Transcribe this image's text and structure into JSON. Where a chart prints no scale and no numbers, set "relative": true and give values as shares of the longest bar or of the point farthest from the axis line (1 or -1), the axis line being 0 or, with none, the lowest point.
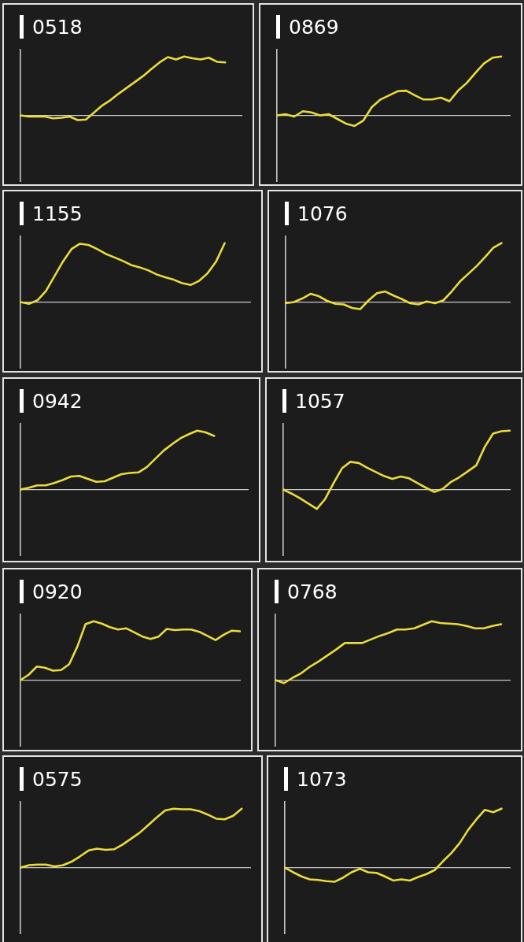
{
  "chart_data": [
    {
      "type": "line",
      "title": "0518",
      "relative": true,
      "color": "#eadb3d",
      "categories": [
        null,
        null,
        null,
        null,
        null,
        null,
        null,
        null,
        null,
        null,
        null,
        null,
        null,
        null,
        null,
        null,
        null,
        null,
        null,
        null,
        null,
        null,
        null,
        null,
        null,
        null,
        null,
        null
      ],
      "values": [
        0,
        -0.02,
        -0.02,
        -0.02,
        -0.05,
        -0.04,
        -0.02,
        -0.08,
        -0.07,
        0.05,
        0.17,
        0.26,
        0.37,
        0.47,
        0.57,
        0.67,
        0.79,
        0.9,
        0.99,
        0.95,
        1,
        0.97,
        0.95,
        0.98,
        0.91,
        0.9,
        null,
        null
      ]
    },
    {
      "type": "line",
      "title": "0869",
      "relative": true,
      "color": "#eadb3d",
      "categories": [
        null,
        null,
        null,
        null,
        null,
        null,
        null,
        null,
        null,
        null,
        null,
        null,
        null,
        null,
        null,
        null,
        null,
        null,
        null,
        null,
        null,
        null,
        null,
        null,
        null,
        null,
        null,
        null
      ],
      "values": [
        0,
        0.02,
        -0.02,
        0.07,
        0.05,
        0,
        0.02,
        -0.06,
        -0.14,
        -0.18,
        -0.09,
        0.14,
        0.27,
        0.34,
        0.41,
        0.42,
        0.34,
        0.27,
        0.27,
        0.3,
        0.24,
        0.42,
        0.55,
        0.72,
        0.88,
        0.98,
        1,
        null
      ]
    },
    {
      "type": "line",
      "title": "1155",
      "relative": true,
      "color": "#eadb3d",
      "categories": [
        null,
        null,
        null,
        null,
        null,
        null,
        null,
        null,
        null,
        null,
        null,
        null,
        null,
        null,
        null,
        null,
        null,
        null,
        null,
        null,
        null,
        null,
        null,
        null,
        null,
        null,
        null,
        null
      ],
      "values": [
        0,
        -0.03,
        0.03,
        0.19,
        0.44,
        0.69,
        0.9,
        0.99,
        0.97,
        0.9,
        0.82,
        0.76,
        0.7,
        0.63,
        0.59,
        0.54,
        0.47,
        0.42,
        0.38,
        0.32,
        0.29,
        0.36,
        0.49,
        0.69,
        1,
        null,
        null,
        null
      ]
    },
    {
      "type": "line",
      "title": "1076",
      "relative": true,
      "color": "#eadb3d",
      "categories": [
        null,
        null,
        null,
        null,
        null,
        null,
        null,
        null,
        null,
        null,
        null,
        null,
        null,
        null,
        null,
        null,
        null,
        null,
        null,
        null,
        null,
        null,
        null,
        null,
        null,
        null,
        null,
        null
      ],
      "values": [
        -0.02,
        0,
        0.06,
        0.14,
        0.1,
        0.02,
        -0.03,
        -0.04,
        -0.1,
        -0.12,
        0.03,
        0.15,
        0.18,
        0.11,
        0.05,
        -0.02,
        -0.04,
        0.01,
        -0.02,
        0.03,
        0.18,
        0.35,
        0.48,
        0.61,
        0.76,
        0.92,
        1,
        null
      ]
    },
    {
      "type": "line",
      "title": "0942",
      "relative": true,
      "color": "#eadb3d",
      "categories": [
        null,
        null,
        null,
        null,
        null,
        null,
        null,
        null,
        null,
        null,
        null,
        null,
        null,
        null,
        null,
        null,
        null,
        null,
        null,
        null,
        null,
        null,
        null,
        null,
        null,
        null,
        null,
        null
      ],
      "values": [
        0,
        0.03,
        0.07,
        0.07,
        0.11,
        0.16,
        0.22,
        0.23,
        0.18,
        0.13,
        0.14,
        0.2,
        0.26,
        0.28,
        0.29,
        0.38,
        0.52,
        0.66,
        0.77,
        0.87,
        0.94,
        1,
        0.97,
        0.91,
        null,
        null,
        null,
        null
      ]
    },
    {
      "type": "line",
      "title": "1057",
      "relative": true,
      "color": "#eadb3d",
      "categories": [
        null,
        null,
        null,
        null,
        null,
        null,
        null,
        null,
        null,
        null,
        null,
        null,
        null,
        null,
        null,
        null,
        null,
        null,
        null,
        null,
        null,
        null,
        null,
        null,
        null,
        null,
        null,
        null
      ],
      "values": [
        0,
        -0.07,
        -0.15,
        -0.24,
        -0.33,
        -0.16,
        0.11,
        0.36,
        0.47,
        0.45,
        0.37,
        0.3,
        0.23,
        0.18,
        0.22,
        0.19,
        0.11,
        0.03,
        -0.04,
        0.01,
        0.13,
        0.21,
        0.31,
        0.41,
        0.72,
        0.95,
        0.99,
        1
      ]
    },
    {
      "type": "line",
      "title": "0920",
      "relative": true,
      "color": "#eadb3d",
      "categories": [
        null,
        null,
        null,
        null,
        null,
        null,
        null,
        null,
        null,
        null,
        null,
        null,
        null,
        null,
        null,
        null,
        null,
        null,
        null,
        null,
        null,
        null,
        null,
        null,
        null,
        null,
        null,
        null
      ],
      "values": [
        0,
        0.09,
        0.23,
        0.21,
        0.16,
        0.17,
        0.27,
        0.57,
        0.95,
        1,
        0.96,
        0.9,
        0.86,
        0.88,
        0.81,
        0.74,
        0.7,
        0.74,
        0.87,
        0.85,
        0.86,
        0.86,
        0.82,
        0.75,
        0.68,
        0.77,
        0.84,
        0.83
      ]
    },
    {
      "type": "line",
      "title": "0768",
      "relative": true,
      "color": "#eadb3d",
      "categories": [
        null,
        null,
        null,
        null,
        null,
        null,
        null,
        null,
        null,
        null,
        null,
        null,
        null,
        null,
        null,
        null,
        null,
        null,
        null,
        null,
        null,
        null,
        null,
        null,
        null,
        null,
        null,
        null
      ],
      "values": [
        0,
        -0.05,
        0.04,
        0.12,
        0.23,
        0.32,
        0.42,
        0.52,
        0.63,
        0.63,
        0.63,
        0.69,
        0.75,
        0.8,
        0.86,
        0.86,
        0.88,
        0.94,
        1,
        0.97,
        0.96,
        0.95,
        0.92,
        0.88,
        0.88,
        0.92,
        0.95,
        null
      ]
    },
    {
      "type": "line",
      "title": "0575",
      "relative": true,
      "color": "#eadb3d",
      "categories": [
        null,
        null,
        null,
        null,
        null,
        null,
        null,
        null,
        null,
        null,
        null,
        null,
        null,
        null,
        null,
        null,
        null,
        null,
        null,
        null,
        null,
        null,
        null,
        null,
        null,
        null,
        null,
        null
      ],
      "values": [
        0,
        0.04,
        0.05,
        0.05,
        0.02,
        0.04,
        0.1,
        0.19,
        0.29,
        0.32,
        0.3,
        0.31,
        0.39,
        0.49,
        0.59,
        0.72,
        0.85,
        0.97,
        1,
        0.99,
        0.99,
        0.96,
        0.9,
        0.83,
        0.82,
        0.88,
        1,
        null
      ]
    },
    {
      "type": "line",
      "title": "1073",
      "relative": true,
      "color": "#eadb3d",
      "categories": [
        null,
        null,
        null,
        null,
        null,
        null,
        null,
        null,
        null,
        null,
        null,
        null,
        null,
        null,
        null,
        null,
        null,
        null,
        null,
        null,
        null,
        null,
        null,
        null,
        null,
        null,
        null,
        null
      ],
      "values": [
        0,
        -0.08,
        -0.15,
        -0.2,
        -0.21,
        -0.23,
        -0.24,
        -0.17,
        -0.08,
        -0.02,
        -0.08,
        -0.09,
        -0.15,
        -0.22,
        -0.2,
        -0.22,
        -0.16,
        -0.11,
        -0.04,
        0.11,
        0.25,
        0.42,
        0.64,
        0.82,
        0.98,
        0.94,
        1,
        null
      ]
    }
  ]
}
